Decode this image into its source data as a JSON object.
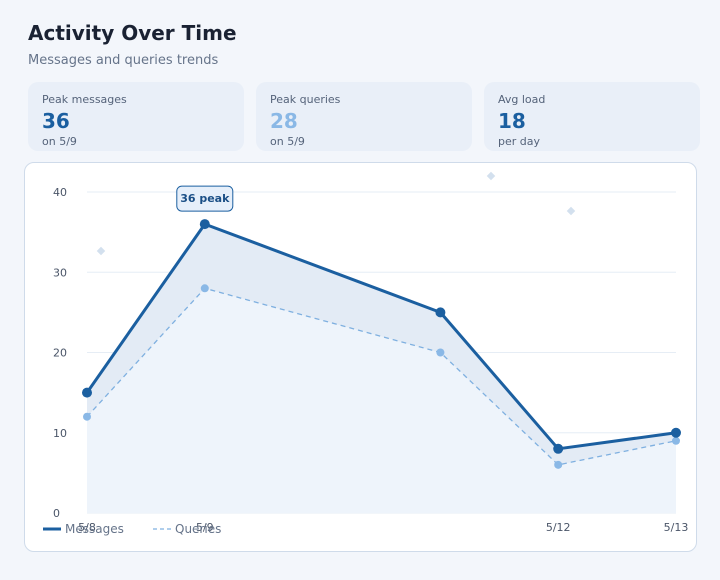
{
  "header": {
    "title": "Activity Over Time",
    "subtitle": "Messages and queries trends"
  },
  "stats": [
    {
      "label": "Peak messages",
      "value": "36",
      "sub": "on 5/9",
      "color": "#1b5fa0"
    },
    {
      "label": "Peak queries",
      "value": "28",
      "sub": "on 5/9",
      "color": "#8ab8e6"
    },
    {
      "label": "Avg load",
      "value": "18",
      "sub": "per day",
      "color": "#1b5fa0"
    }
  ],
  "chart_data": {
    "type": "line",
    "x_ticks": [
      "5/8",
      "5/9",
      "5/12",
      "5/13"
    ],
    "x_values": [
      "5/8",
      "5/9",
      "5/11",
      "5/12",
      "5/13"
    ],
    "ylim": [
      0,
      40
    ],
    "y_ticks": [
      0,
      10,
      20,
      30,
      40
    ],
    "grid": true,
    "series": [
      {
        "name": "Messages",
        "values": [
          15,
          36,
          25,
          8,
          10
        ],
        "color": "#1b5fa0",
        "style": "solid"
      },
      {
        "name": "Queries",
        "values": [
          12,
          28,
          20,
          6,
          9
        ],
        "color": "#7fb0e0",
        "style": "dashed"
      }
    ],
    "annotation": {
      "text": "36 peak",
      "series": "Messages",
      "x": "5/9"
    },
    "legend": "bottom-left"
  }
}
